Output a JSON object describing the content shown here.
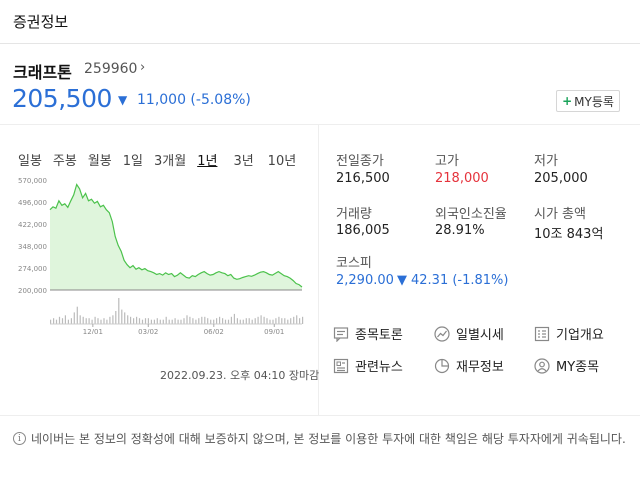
{
  "header": {
    "title": "증권정보"
  },
  "stock": {
    "name": "크래프톤",
    "code": "259960",
    "price": "205,500",
    "change": "11,000 (-5.08%)",
    "my_button": "MY등록"
  },
  "tabs": [
    {
      "label": "일봉"
    },
    {
      "label": "주봉"
    },
    {
      "label": "월봉"
    },
    {
      "label": "1일"
    },
    {
      "label": "3개월"
    },
    {
      "label": "1년"
    },
    {
      "label": "3년"
    },
    {
      "label": "10년"
    }
  ],
  "timestamp": "2022.09.23. 오후 04:10 장마감",
  "stats": {
    "prev_close": {
      "label": "전일종가",
      "value": "216,500"
    },
    "high": {
      "label": "고가",
      "value": "218,000"
    },
    "low": {
      "label": "저가",
      "value": "205,000"
    },
    "volume": {
      "label": "거래량",
      "value": "186,005"
    },
    "foreign": {
      "label": "외국인소진율",
      "value": "28.91%"
    },
    "mcap": {
      "label": "시가 총액",
      "value": "10조 843억"
    }
  },
  "kospi": {
    "label": "코스피",
    "value": "2,290.00",
    "change": "42.31 (-1.81%)"
  },
  "links": [
    {
      "label": "종목토론",
      "icon": "discussion-icon"
    },
    {
      "label": "일별시세",
      "icon": "trend-icon"
    },
    {
      "label": "기업개요",
      "icon": "company-icon"
    },
    {
      "label": "관련뉴스",
      "icon": "news-icon"
    },
    {
      "label": "재무정보",
      "icon": "pie-icon"
    },
    {
      "label": "MY종목",
      "icon": "user-icon"
    }
  ],
  "disclaimer": "네이버는 본 정보의 정확성에 대해 보증하지 않으며, 본 정보를 이용한 투자에 대한 책임은 해당 투자자에게 귀속됩니다.",
  "colors": {
    "down": "#2b6fd6",
    "up": "#e5333c",
    "chart_line": "#4cc24c",
    "chart_fill": "#dff5dc"
  },
  "chart_data": {
    "type": "area",
    "y_ticks": [
      "570,000",
      "496,000",
      "422,000",
      "348,000",
      "274,000",
      "200,000"
    ],
    "ylim": [
      200000,
      570000
    ],
    "x_ticks": [
      "12/01",
      "03/02",
      "06/02",
      "09/01"
    ],
    "values": [
      470000,
      480000,
      475000,
      500000,
      485000,
      490000,
      478000,
      500000,
      520000,
      555000,
      540000,
      510000,
      525000,
      500000,
      505000,
      492000,
      498000,
      480000,
      485000,
      470000,
      460000,
      430000,
      380000,
      350000,
      330000,
      300000,
      285000,
      275000,
      282000,
      270000,
      275000,
      268000,
      272000,
      265000,
      262000,
      258000,
      252000,
      255000,
      250000,
      258000,
      252000,
      255000,
      245000,
      250000,
      258000,
      250000,
      242000,
      240000,
      248000,
      245000,
      252000,
      258000,
      262000,
      255000,
      250000,
      252000,
      258000,
      262000,
      258000,
      255000,
      248000,
      252000,
      240000,
      236000,
      238000,
      242000,
      245000,
      248000,
      246000,
      250000,
      255000,
      260000,
      262000,
      258000,
      252000,
      250000,
      256000,
      262000,
      255000,
      248000,
      245000,
      240000,
      232000,
      222000,
      218000,
      210000
    ],
    "volume": [
      3,
      4,
      3,
      5,
      4,
      6,
      3,
      4,
      8,
      12,
      6,
      5,
      4,
      4,
      3,
      5,
      4,
      3,
      4,
      3,
      5,
      6,
      9,
      18,
      10,
      8,
      6,
      5,
      4,
      5,
      4,
      3,
      4,
      4,
      3,
      3,
      4,
      3,
      3,
      5,
      3,
      3,
      4,
      3,
      3,
      4,
      6,
      5,
      4,
      3,
      4,
      5,
      5,
      4,
      3,
      3,
      4,
      5,
      4,
      3,
      3,
      5,
      7,
      4,
      3,
      3,
      4,
      4,
      3,
      4,
      5,
      6,
      5,
      4,
      3,
      3,
      4,
      5,
      4,
      4,
      3,
      4,
      5,
      6,
      4,
      5
    ]
  }
}
